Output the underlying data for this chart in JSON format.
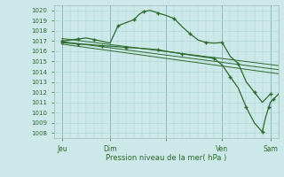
{
  "bg": "#cce8e8",
  "grid_color": "#aad4d4",
  "lc": "#2d6a2d",
  "title": "Pression niveau de la mer( hPa )",
  "ylim": [
    1007.5,
    1020.5
  ],
  "yticks": [
    1008,
    1009,
    1010,
    1011,
    1012,
    1013,
    1014,
    1015,
    1016,
    1017,
    1018,
    1019,
    1020
  ],
  "xlim": [
    0,
    14
  ],
  "xtick_pos": [
    0.5,
    3.5,
    7.0,
    10.5,
    13.5
  ],
  "xtick_labels": [
    "Jeu",
    "Dim",
    "",
    "Ven",
    "Sam"
  ],
  "day_vlines": [
    0.5,
    3.5,
    7.0,
    10.5,
    13.5
  ],
  "line1_x": [
    0.5,
    1.0,
    1.5,
    2.0,
    2.5,
    3.5,
    4.0,
    4.5,
    5.0,
    5.3,
    5.6,
    6.0,
    6.5,
    7.0,
    7.5,
    8.0,
    8.5,
    9.0,
    9.5,
    10.0,
    10.5,
    11.0,
    11.5,
    12.0,
    12.5,
    13.0,
    13.5
  ],
  "line1_y": [
    1017.0,
    1017.1,
    1017.2,
    1017.3,
    1017.15,
    1016.8,
    1018.5,
    1018.8,
    1019.1,
    1019.6,
    1019.9,
    1020.0,
    1019.75,
    1019.5,
    1019.2,
    1018.4,
    1017.7,
    1017.1,
    1016.85,
    1016.8,
    1016.85,
    1015.5,
    1014.8,
    1013.0,
    1012.0,
    1011.0,
    1011.8
  ],
  "line2_x": [
    0.5,
    1.0,
    1.5,
    2.0,
    3.0,
    3.5,
    4.5,
    5.5,
    6.5,
    7.0,
    8.0,
    9.0,
    10.0,
    10.5,
    11.0,
    11.5,
    12.0,
    12.5,
    13.0,
    13.2,
    13.4,
    13.5,
    13.7,
    14.0
  ],
  "line2_y": [
    1016.85,
    1016.78,
    1016.72,
    1016.68,
    1016.55,
    1016.5,
    1016.38,
    1016.28,
    1016.15,
    1016.0,
    1015.75,
    1015.52,
    1015.3,
    1014.65,
    1013.5,
    1012.4,
    1010.5,
    1009.0,
    1008.1,
    1009.5,
    1010.5,
    1011.0,
    1011.3,
    1011.8
  ],
  "trend1_x": [
    0.5,
    14.0
  ],
  "trend1_y": [
    1017.25,
    1014.6
  ],
  "trend2_x": [
    0.5,
    14.0
  ],
  "trend2_y": [
    1016.95,
    1014.2
  ],
  "trend3_x": [
    0.5,
    14.0
  ],
  "trend3_y": [
    1016.7,
    1013.8
  ]
}
